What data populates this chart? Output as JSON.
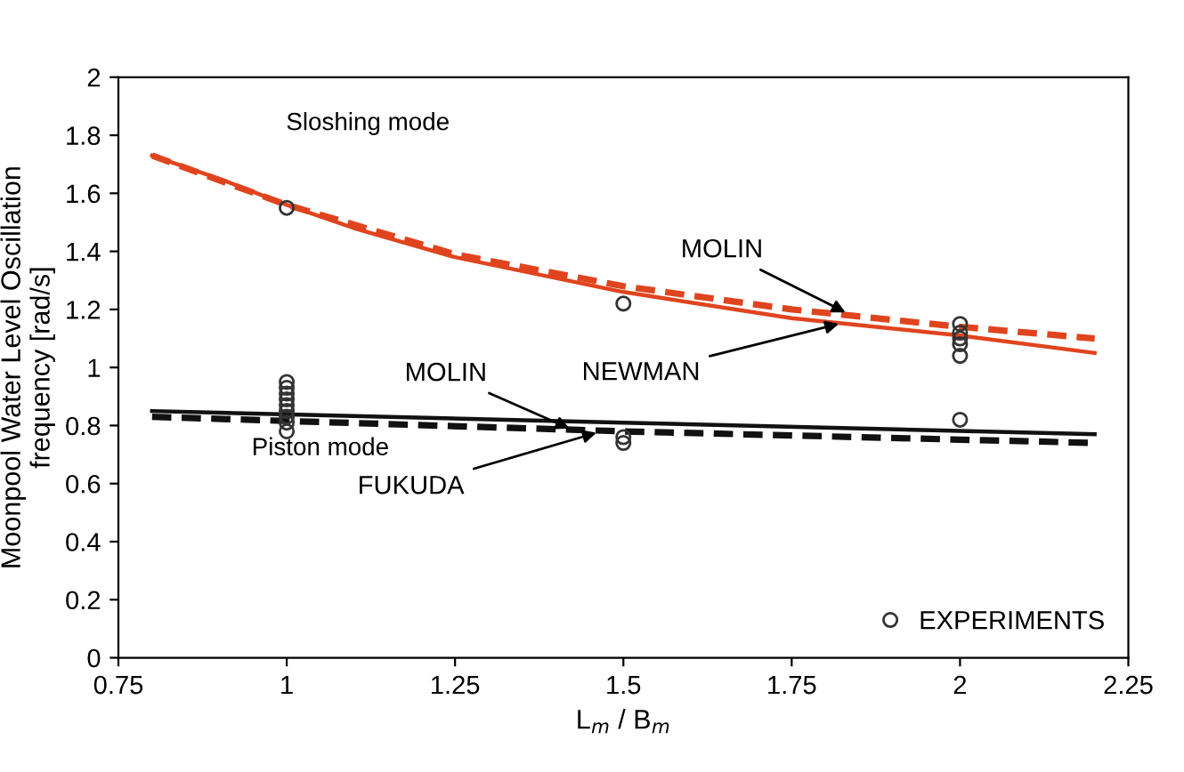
{
  "chart_data": {
    "type": "line",
    "xlabel": "L$_{m}$ / B$_{m}$",
    "ylabel": "Moonpool Water Level Oscillation\nfrequency [rad/s]",
    "xlim": [
      0.75,
      2.25
    ],
    "xticks": [
      0.75,
      1,
      1.25,
      1.5,
      1.75,
      2,
      2.25
    ],
    "ylim": [
      0,
      2
    ],
    "yticks": [
      0,
      0.2,
      0.4,
      0.6,
      0.8,
      1,
      1.2,
      1.4,
      1.6,
      1.8,
      2
    ],
    "grid": false,
    "legend": "bottom right",
    "series": [
      {
        "color": "#e0441e",
        "line_style": "solid",
        "x": [
          0.8,
          0.9,
          1.0,
          1.1,
          1.25,
          1.5,
          1.75,
          2.0,
          2.2
        ],
        "values": [
          1.73,
          1.65,
          1.56,
          1.48,
          1.38,
          1.26,
          1.17,
          1.11,
          1.05
        ]
      },
      {
        "color": "#e0441e",
        "line_style": "dashed",
        "x": [
          0.8,
          1.0,
          1.25,
          1.5,
          1.75,
          2.0,
          2.2
        ],
        "values": [
          1.73,
          1.56,
          1.39,
          1.28,
          1.2,
          1.14,
          1.1
        ]
      },
      {
        "color": "#111111",
        "line_style": "solid",
        "x": [
          0.8,
          1.5,
          2.2
        ],
        "values": [
          0.85,
          0.81,
          0.77
        ]
      },
      {
        "color": "#111111",
        "line_style": "dashed",
        "x": [
          0.8,
          1.5,
          2.2
        ],
        "values": [
          0.83,
          0.78,
          0.74
        ]
      },
      {
        "type": "scatter",
        "name": "EXPERIMENTS",
        "color": "#333333",
        "marker": "circle",
        "x": [
          1,
          1,
          1,
          1,
          1,
          1,
          1,
          1,
          1,
          1,
          1.5,
          1.5,
          1.5,
          2,
          2,
          2,
          2,
          2,
          2
        ],
        "values": [
          1.55,
          0.95,
          0.93,
          0.91,
          0.89,
          0.87,
          0.85,
          0.83,
          0.81,
          0.78,
          1.22,
          0.76,
          0.74,
          1.15,
          1.12,
          1.1,
          1.08,
          1.04,
          0.82
        ]
      }
    ],
    "annotations": [
      "Sloshing mode",
      "Piston mode",
      {
        "text": "MOLIN",
        "x": 1.83,
        "y": 1.19
      },
      {
        "text": "NEWMAN",
        "x": 1.82,
        "y": 1.15
      },
      {
        "text": "MOLIN",
        "x": 1.42,
        "y": 0.79
      },
      {
        "text": "FUKUDA",
        "x": 1.46,
        "y": 0.775
      }
    ]
  }
}
